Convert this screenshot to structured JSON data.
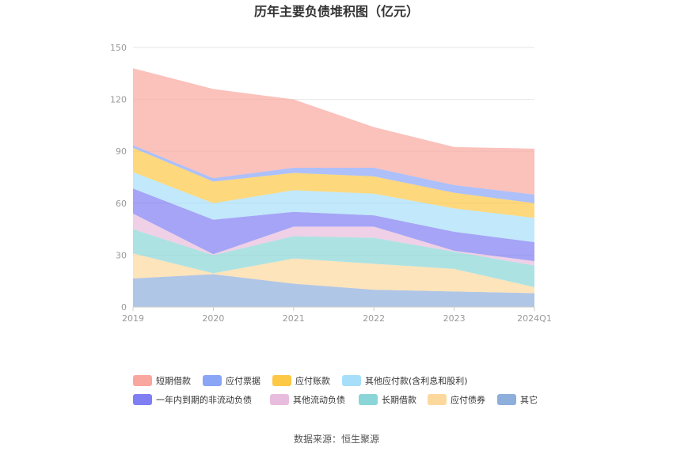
{
  "chart_data": {
    "type": "area",
    "stacked": true,
    "title": "历年主要负债堆积图（亿元）",
    "categories": [
      "2019",
      "2020",
      "2021",
      "2022",
      "2023",
      "2024Q1"
    ],
    "ylim": [
      0,
      150
    ],
    "yticks": [
      0,
      30,
      60,
      90,
      120,
      150
    ],
    "grid": true,
    "legend_position": "bottom",
    "series": [
      {
        "name": "其它",
        "color": "#8eaedb",
        "values": [
          16.5,
          19,
          13.5,
          10,
          9,
          8
        ]
      },
      {
        "name": "应付债券",
        "color": "#fdd89c",
        "values": [
          14.5,
          0.5,
          14.5,
          15,
          13,
          3.5
        ]
      },
      {
        "name": "长期借款",
        "color": "#8ad5d7",
        "values": [
          14,
          10.5,
          13,
          15,
          10,
          12.5
        ]
      },
      {
        "name": "其他流动负债",
        "color": "#e8bcdc",
        "values": [
          9,
          0.5,
          5.5,
          6.5,
          0.5,
          2.5
        ]
      },
      {
        "name": "一年内到期的非流动负债",
        "color": "#7f7ef2",
        "values": [
          14.5,
          20,
          8.5,
          6.5,
          11,
          11
        ]
      },
      {
        "name": "其他应付款(含利息和股利)",
        "color": "#a7def9",
        "values": [
          9.5,
          9.5,
          12.5,
          12.5,
          13.5,
          14
        ]
      },
      {
        "name": "应付账款",
        "color": "#fcc845",
        "values": [
          14,
          12.5,
          10,
          10,
          9,
          8.5
        ]
      },
      {
        "name": "应付票据",
        "color": "#8aa5f6",
        "values": [
          1.5,
          2,
          3,
          5,
          4.5,
          5
        ]
      },
      {
        "name": "短期借款",
        "color": "#f9a69e",
        "values": [
          44.5,
          51.5,
          39.5,
          23.5,
          22,
          26.5
        ]
      }
    ],
    "legend_order": [
      "短期借款",
      "应付票据",
      "应付账款",
      "其他应付款(含利息和股利)",
      "一年内到期的非流动负债",
      "其他流动负债",
      "长期借款",
      "应付债券",
      "其它"
    ]
  },
  "source": "数据来源：恒生聚源"
}
